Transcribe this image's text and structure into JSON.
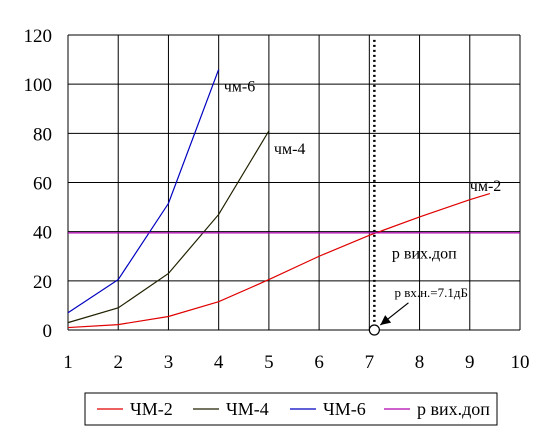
{
  "chart_data": {
    "type": "line",
    "xlim": [
      1,
      10
    ],
    "ylim": [
      0,
      120
    ],
    "x_ticks": [
      "1",
      "2",
      "3",
      "4",
      "5",
      "6",
      "7",
      "8",
      "9",
      "10"
    ],
    "y_ticks": [
      "0",
      "20",
      "40",
      "60",
      "80",
      "100",
      "120"
    ],
    "grid": true,
    "legend_position": "bottom",
    "series": [
      {
        "name": "ЧМ-2",
        "color": "#e00000",
        "x": [
          1,
          2,
          3,
          4,
          5,
          6,
          7,
          8,
          9,
          9.4
        ],
        "y": [
          1,
          2.2,
          5.5,
          11.5,
          20.5,
          30,
          38.5,
          46,
          53,
          55.5
        ]
      },
      {
        "name": "ЧМ-4",
        "color": "#202000",
        "x": [
          1,
          2,
          3,
          4,
          5
        ],
        "y": [
          3,
          9,
          23,
          47,
          81
        ]
      },
      {
        "name": "ЧМ-6",
        "color": "#0000c0",
        "x": [
          1,
          2,
          3,
          4
        ],
        "y": [
          7,
          20.5,
          51.5,
          106
        ]
      },
      {
        "name": "р вих.доп",
        "color": "#b000b0",
        "x": [
          1,
          10
        ],
        "y": [
          39.5,
          39.5
        ]
      }
    ],
    "curve_labels": [
      {
        "text": "чм-6",
        "x": 4.1,
        "y": 97
      },
      {
        "text": "чм-4",
        "x": 5.1,
        "y": 71.5
      },
      {
        "text": "чм-2",
        "x": 9.0,
        "y": 56.5
      },
      {
        "text": "р вих.доп",
        "x": 7.45,
        "y": 29
      }
    ],
    "marker": {
      "x": 7.1,
      "y": 0,
      "label": "р вх.н.=7.1дБ",
      "label_x": 7.5,
      "label_y": 13.5
    }
  }
}
